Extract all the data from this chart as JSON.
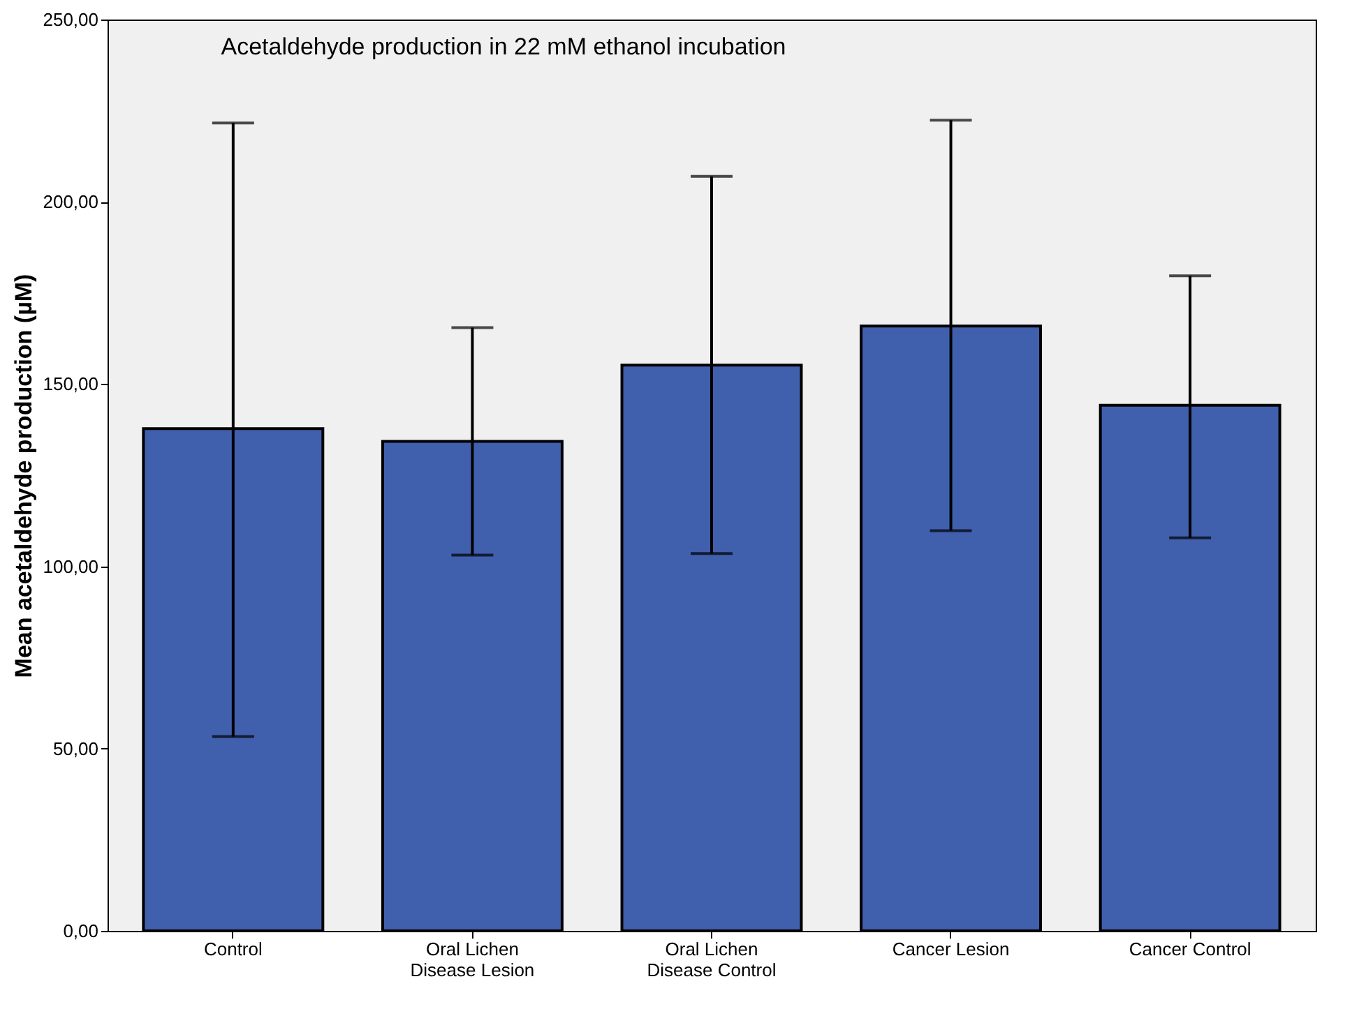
{
  "chart_data": {
    "type": "bar",
    "title": "Acetaldehyde production in 22 mM ethanol incubation",
    "ylabel": "Mean acetaldehyde production (µM)",
    "categories": [
      "Control",
      "Oral Lichen\nDisease Lesion",
      "Oral Lichen\nDisease Control",
      "Cancer Lesion",
      "Cancer Control"
    ],
    "values": [
      137.8,
      134.3,
      155.2,
      165.9,
      144.2
    ],
    "errors": [
      [
        53.3,
        221.6
      ],
      [
        103.1,
        165.5
      ],
      [
        103.5,
        207.0
      ],
      [
        109.8,
        222.4
      ],
      [
        107.8,
        179.7
      ]
    ],
    "color": "#4060ae",
    "ylim": [
      0,
      250
    ],
    "yticks": [
      {
        "value": 0,
        "label": "0,00"
      },
      {
        "value": 50,
        "label": "50,00"
      },
      {
        "value": 100,
        "label": "100,00"
      },
      {
        "value": 150,
        "label": "150,00"
      },
      {
        "value": 200,
        "label": "200,00"
      },
      {
        "value": 250,
        "label": "250,00"
      }
    ],
    "grid": false
  }
}
